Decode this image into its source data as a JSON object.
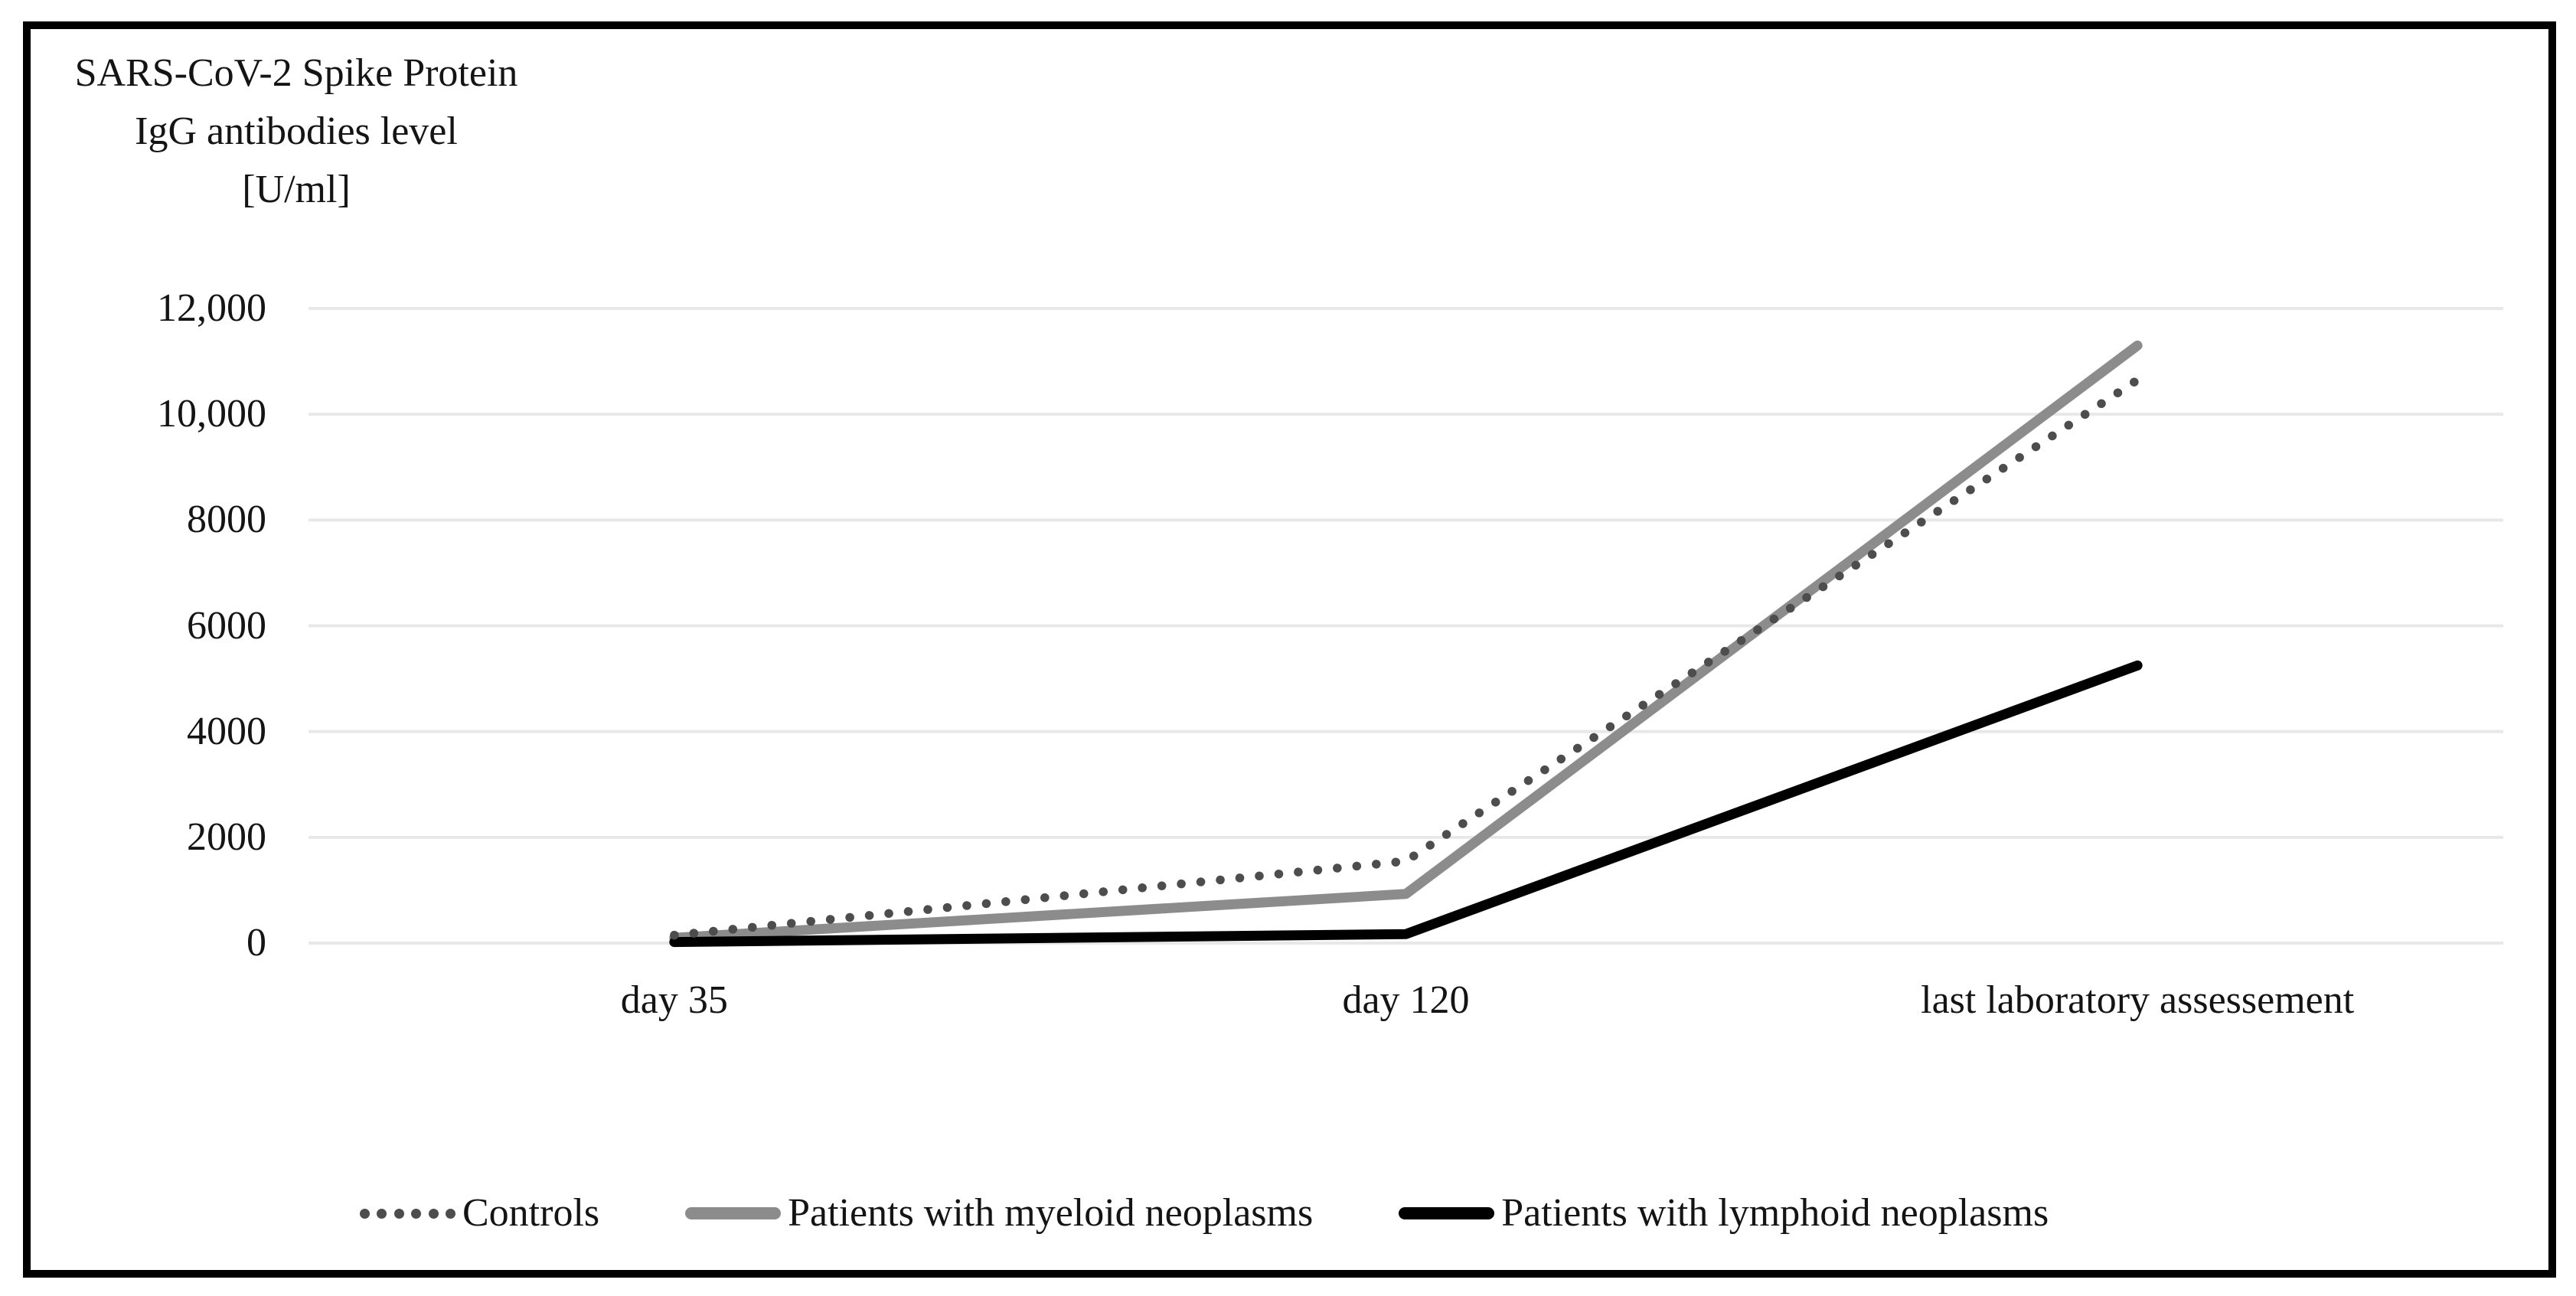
{
  "figure": {
    "title": "SARS-CoV-2 Spike Protein\nIgG antibodies level\n[U/ml]"
  },
  "chart_data": {
    "type": "line",
    "title": "SARS-CoV-2 Spike Protein IgG antibodies level [U/ml]",
    "xlabel": "",
    "ylabel": "SARS-CoV-2 Spike Protein IgG antibodies level [U/ml]",
    "categories": [
      "day 35",
      "day 120",
      "last laboratory assessement"
    ],
    "y_axis": {
      "ylim": [
        0,
        12000
      ],
      "grid": true,
      "ticks": [
        {
          "value": 0,
          "label": "0"
        },
        {
          "value": 2000,
          "label": "2000"
        },
        {
          "value": 4000,
          "label": "4000"
        },
        {
          "value": 6000,
          "label": "6000"
        },
        {
          "value": 8000,
          "label": "8000"
        },
        {
          "value": 10000,
          "label": "10,000"
        },
        {
          "value": 12000,
          "label": "12,000"
        }
      ]
    },
    "legend_position": "bottom",
    "series": [
      {
        "name": "Controls",
        "style": "dotted",
        "color": "#4d4d4d",
        "values": [
          150,
          1550,
          10650
        ]
      },
      {
        "name": "Patients with myeloid neoplasms",
        "style": "solid",
        "color": "#8c8c8c",
        "values": [
          100,
          930,
          11300
        ]
      },
      {
        "name": "Patients with lymphoid neoplasms",
        "style": "solid",
        "color": "#000000",
        "values": [
          20,
          170,
          5250
        ]
      }
    ],
    "colors": {
      "gridline": "#e8e8e8",
      "text": "#141414",
      "frame_border": "#000000"
    }
  }
}
